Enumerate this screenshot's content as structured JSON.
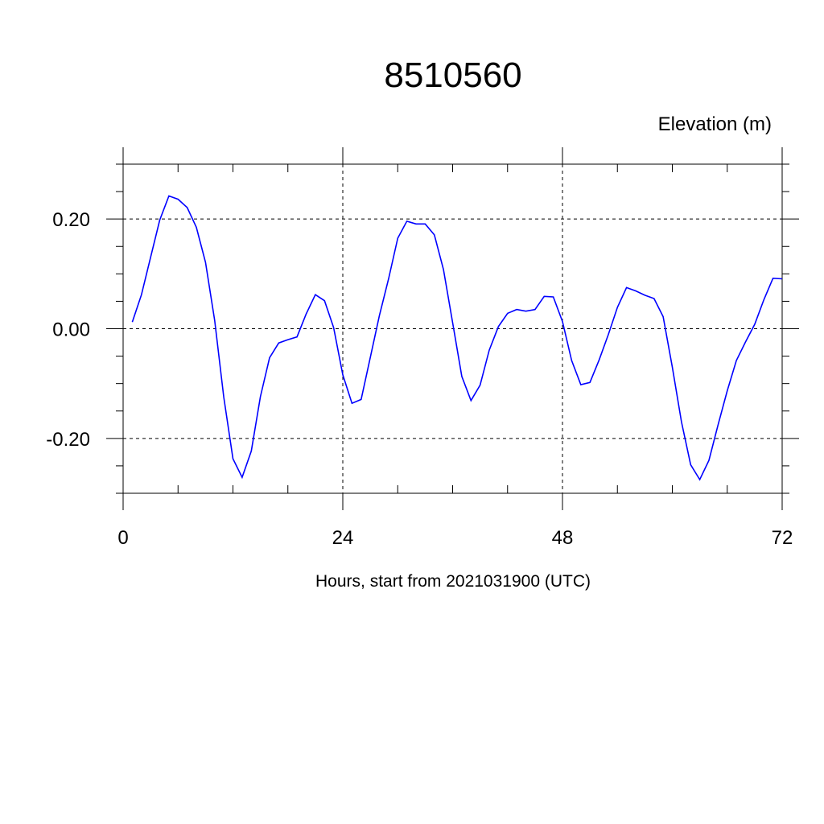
{
  "chart_data": {
    "type": "line",
    "title": "8510560",
    "ylabel_unit": "Elevation (m)",
    "xlabel": "Hours, start from 2021031900 (UTC)",
    "xlim": [
      0,
      72
    ],
    "ylim": [
      -0.3,
      0.3
    ],
    "x_ticks": [
      0,
      24,
      48,
      72
    ],
    "x_tick_labels": [
      "0",
      "24",
      "48",
      "72"
    ],
    "y_ticks": [
      -0.2,
      0.0,
      0.2
    ],
    "y_tick_labels": [
      "-0.20",
      "0.00",
      "0.20"
    ],
    "grid": "dashed at major ticks",
    "colors": {
      "series": "#0000ff",
      "axes": "#000000"
    },
    "series": [
      {
        "x": [
          1,
          2,
          3,
          4,
          5,
          6,
          7,
          8,
          9,
          10,
          11,
          12,
          13,
          14,
          15,
          16,
          17,
          18,
          19,
          20,
          21,
          22,
          23,
          24,
          25,
          26,
          27,
          28,
          29,
          30,
          31,
          32,
          33,
          34,
          35,
          36,
          37,
          38,
          39,
          40,
          41,
          42,
          43,
          44,
          45,
          46,
          47,
          48,
          49,
          50,
          51,
          52,
          53,
          54,
          55,
          56,
          57,
          58,
          59,
          60,
          61,
          62,
          63,
          64,
          65,
          66,
          67,
          68,
          69,
          70,
          71,
          72
        ],
        "y": [
          0.012,
          0.062,
          0.13,
          0.198,
          0.242,
          0.236,
          0.221,
          0.185,
          0.121,
          0.015,
          -0.125,
          -0.237,
          -0.271,
          -0.223,
          -0.124,
          -0.053,
          -0.026,
          -0.02,
          -0.015,
          0.027,
          0.062,
          0.051,
          0.002,
          -0.084,
          -0.136,
          -0.129,
          -0.053,
          0.024,
          0.091,
          0.165,
          0.196,
          0.191,
          0.191,
          0.171,
          0.108,
          0.011,
          -0.087,
          -0.131,
          -0.103,
          -0.039,
          0.004,
          0.028,
          0.035,
          0.032,
          0.035,
          0.059,
          0.058,
          0.013,
          -0.058,
          -0.102,
          -0.098,
          -0.057,
          -0.011,
          0.039,
          0.075,
          0.069,
          0.061,
          0.055,
          0.022,
          -0.07,
          -0.17,
          -0.248,
          -0.275,
          -0.24,
          -0.175,
          -0.113,
          -0.058,
          -0.024,
          0.008,
          0.053,
          0.092,
          0.091
        ]
      }
    ]
  }
}
